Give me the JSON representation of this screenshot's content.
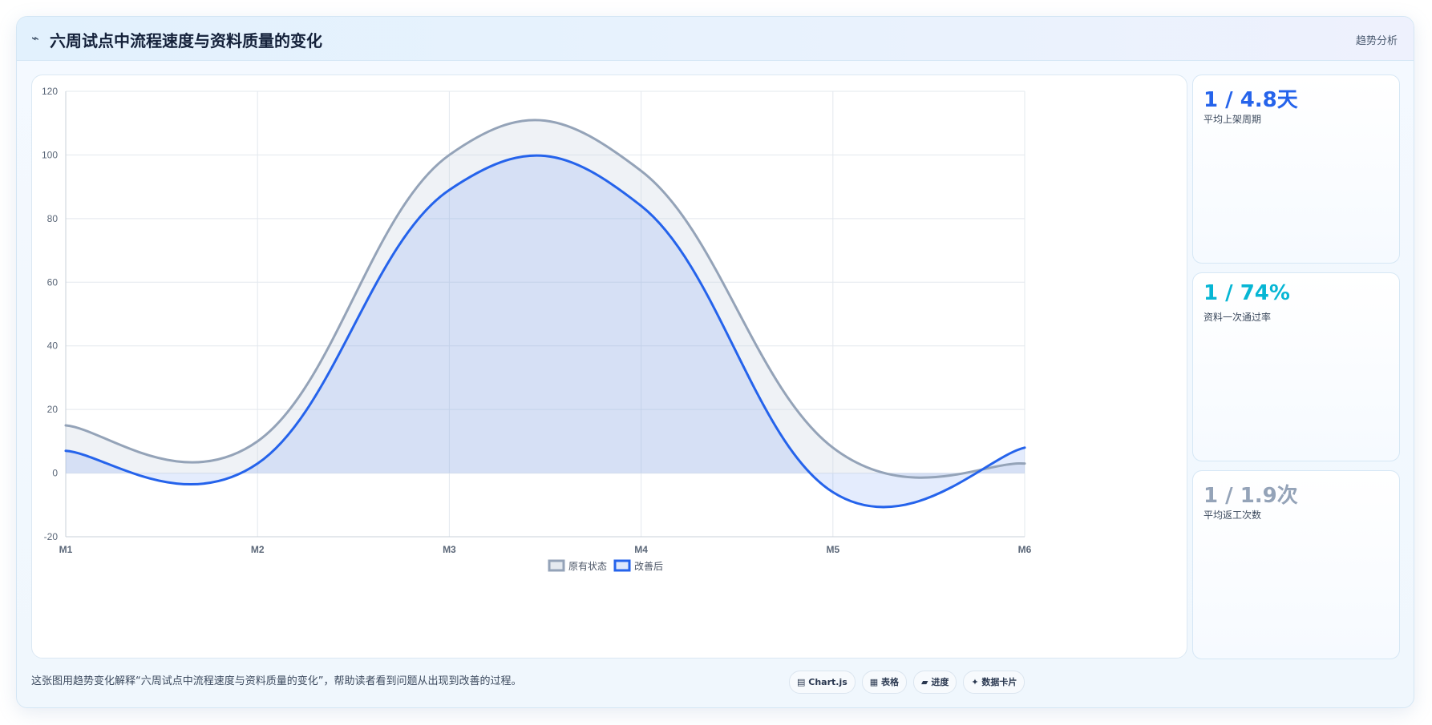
{
  "header": {
    "icon": "trend-icon",
    "icon_glyph": "⌁",
    "title": "六周试点中流程速度与资料质量的变化",
    "tag": "趋势分析"
  },
  "chart_data": {
    "type": "area",
    "categories": [
      "M1",
      "M2",
      "M3",
      "M4",
      "M5",
      "M6"
    ],
    "series": [
      {
        "name": "原有状态",
        "values": [
          15,
          10,
          100,
          95,
          8,
          3
        ],
        "color": "#94a3b8"
      },
      {
        "name": "改善后",
        "values": [
          7,
          3,
          89,
          84,
          -6,
          8
        ],
        "color": "#2563eb"
      }
    ],
    "ylim": [
      -20,
      120
    ],
    "yticks": [
      -20,
      0,
      20,
      40,
      60,
      80,
      100,
      120
    ],
    "grid": true,
    "legend_position": "bottom"
  },
  "stats": [
    {
      "value": "1 / 4.8天",
      "label": "平均上架周期",
      "color": "#2563eb"
    },
    {
      "value": "1 / 74%",
      "label": "资料一次通过率",
      "color": "#06b6d4"
    },
    {
      "value": "1 / 1.9次",
      "label": "平均返工次数",
      "color": "#94a3b8"
    }
  ],
  "footer": {
    "description": "这张图用趋势变化解释“六周试点中流程速度与资料质量的变化”，帮助读者看到问题从出现到改善的过程。",
    "tags": [
      {
        "glyph": "▤",
        "label": "Chart.js"
      },
      {
        "glyph": "▦",
        "label": "表格"
      },
      {
        "glyph": "▰",
        "label": "进度"
      },
      {
        "glyph": "✦",
        "label": "数据卡片"
      }
    ]
  }
}
